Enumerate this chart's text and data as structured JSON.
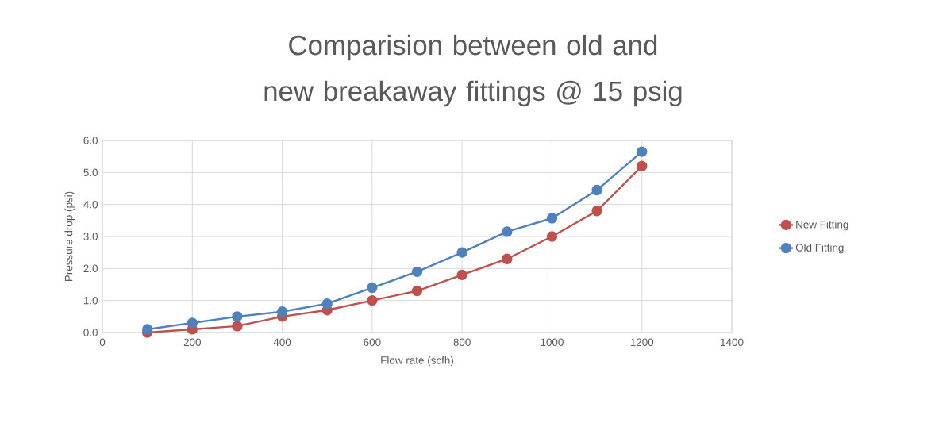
{
  "chart_data": {
    "type": "line",
    "title": "Comparision between old and new breakaway fittings @ 15 psig",
    "xlabel": "Flow rate (scfh)",
    "ylabel": "Pressure drop (psi)",
    "x": [
      100,
      200,
      300,
      400,
      500,
      600,
      700,
      800,
      900,
      1000,
      1100,
      1200
    ],
    "series": [
      {
        "name": "New Fitting",
        "color": "#c0504d",
        "values": [
          0.0,
          0.1,
          0.2,
          0.5,
          0.7,
          1.0,
          1.3,
          1.8,
          2.3,
          3.0,
          3.8,
          5.2
        ]
      },
      {
        "name": "Old Fitting",
        "color": "#4f81bd",
        "values": [
          0.1,
          0.3,
          0.5,
          0.65,
          0.9,
          1.4,
          1.9,
          2.5,
          3.15,
          3.57,
          4.45,
          5.65
        ]
      }
    ],
    "xlim": [
      0,
      1400
    ],
    "xticks": [
      0,
      200,
      400,
      600,
      800,
      1000,
      1200,
      1400
    ],
    "ylim": [
      0,
      6
    ],
    "yticks": [
      {
        "value": 0,
        "label": "0.0"
      },
      {
        "value": 1,
        "label": "1.0"
      },
      {
        "value": 2,
        "label": "2.0"
      },
      {
        "value": 3,
        "label": "3.0"
      },
      {
        "value": 4,
        "label": "4.0"
      },
      {
        "value": 5,
        "label": "5.0"
      },
      {
        "value": 6,
        "label": "6.0"
      }
    ],
    "grid": true,
    "legend": "right",
    "marker": "circle",
    "line_style": "solid"
  }
}
